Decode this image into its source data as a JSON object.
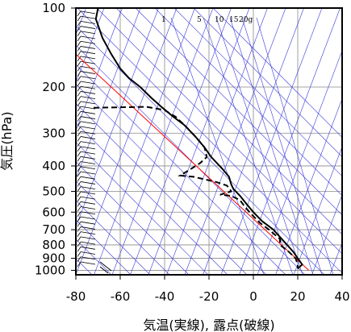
{
  "chart_data": {
    "type": "line",
    "title": "",
    "xlabel": "気温(実線), 露点(破線)",
    "ylabel": "気圧(hPa)",
    "xlim": [
      -80,
      40
    ],
    "ylim": [
      1040,
      100
    ],
    "y_scale": "log",
    "grid": true,
    "x_ticks": [
      -80,
      -60,
      -40,
      -20,
      0,
      20,
      40
    ],
    "y_ticks": [
      100,
      200,
      300,
      400,
      500,
      600,
      700,
      800,
      900,
      1000
    ],
    "mixing_ratio_labels": [
      "1",
      "5",
      "10",
      "15",
      "20g"
    ],
    "colors": {
      "temperature": "#000000",
      "dewpoint": "#000000",
      "reference_line": "#ff0000",
      "isotherm": "#3a3adc",
      "grid": "#888888"
    },
    "series": [
      {
        "name": "気温",
        "style": "solid",
        "points": [
          [
            -70,
            100
          ],
          [
            -71,
            110
          ],
          [
            -68,
            130
          ],
          [
            -64,
            150
          ],
          [
            -60,
            170
          ],
          [
            -56,
            185
          ],
          [
            -51,
            200
          ],
          [
            -46,
            220
          ],
          [
            -41,
            240
          ],
          [
            -36,
            260
          ],
          [
            -31,
            280
          ],
          [
            -26,
            310
          ],
          [
            -22,
            340
          ],
          [
            -19,
            370
          ],
          [
            -14,
            410
          ],
          [
            -11,
            440
          ],
          [
            -10,
            470
          ],
          [
            -9,
            490
          ],
          [
            -6,
            520
          ],
          [
            -3,
            560
          ],
          [
            0,
            600
          ],
          [
            4,
            650
          ],
          [
            9,
            700
          ],
          [
            14,
            780
          ],
          [
            18,
            850
          ],
          [
            20,
            900
          ],
          [
            22,
            950
          ],
          [
            20,
            985
          ]
        ]
      },
      {
        "name": "露点",
        "style": "dashed",
        "points": [
          [
            -72,
            240
          ],
          [
            -48,
            238
          ],
          [
            -40,
            245
          ],
          [
            -35,
            260
          ],
          [
            -31,
            280
          ],
          [
            -26,
            310
          ],
          [
            -22,
            340
          ],
          [
            -21,
            370
          ],
          [
            -24,
            390
          ],
          [
            -29,
            415
          ],
          [
            -33,
            435
          ],
          [
            -27,
            440
          ],
          [
            -17,
            460
          ],
          [
            -12,
            475
          ],
          [
            -11,
            485
          ],
          [
            -10,
            500
          ],
          [
            -15,
            515
          ],
          [
            -10,
            520
          ],
          [
            -6,
            540
          ],
          [
            -4,
            570
          ],
          [
            -1,
            610
          ],
          [
            3,
            660
          ],
          [
            7,
            700
          ],
          [
            12,
            760
          ],
          [
            12,
            800
          ],
          [
            16,
            850
          ],
          [
            19,
            900
          ],
          [
            20,
            950
          ],
          [
            20,
            985
          ]
        ]
      }
    ],
    "reference_line": {
      "points": [
        [
          -80,
          150
        ],
        [
          25,
          1000
        ]
      ]
    }
  }
}
